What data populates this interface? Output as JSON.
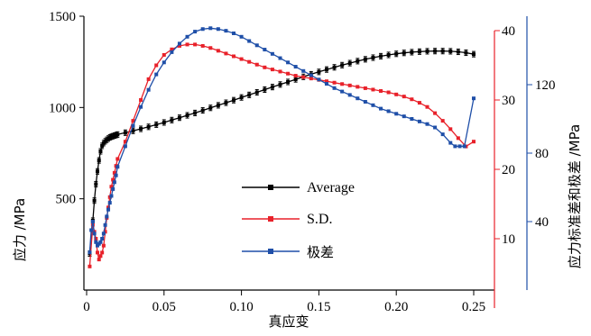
{
  "chart_data": {
    "type": "line",
    "xlabel": "真应变",
    "ylabel_left": "应力 /MPa",
    "ylabel_right_inner": "应力标准差和极差 /MPa",
    "xlim": [
      0,
      0.26
    ],
    "x_ticks": [
      "0",
      "0.05",
      "0.10",
      "0.15",
      "0.20",
      "0.25"
    ],
    "x_tick_values": [
      0,
      0.05,
      0.1,
      0.15,
      0.2,
      0.25
    ],
    "ylim_left": [
      0,
      1500
    ],
    "y_left_ticks": [
      "500",
      "1000",
      "1500"
    ],
    "y_left_tick_values": [
      500,
      1000,
      1500
    ],
    "ylim_right_inner": [
      0,
      40
    ],
    "y_right_inner_ticks": [
      "10",
      "20",
      "30",
      "40"
    ],
    "y_right_inner_tick_values": [
      10,
      20,
      30,
      40
    ],
    "ylim_right_outer": [
      0,
      160
    ],
    "y_right_outer_ticks": [
      "40",
      "80",
      "120"
    ],
    "y_right_outer_tick_values": [
      40,
      80,
      120
    ],
    "legend_position": "center",
    "colors": {
      "average": "#000000",
      "sd": "#e8212a",
      "range": "#1f4fa8",
      "right_inner_axis": "#e8212a",
      "right_outer_axis": "#1f4fa8"
    },
    "series": [
      {
        "name": "Average",
        "axis": "left",
        "error_bar": 15,
        "points": [
          [
            0.002,
            200
          ],
          [
            0.004,
            380
          ],
          [
            0.005,
            490
          ],
          [
            0.006,
            580
          ],
          [
            0.007,
            650
          ],
          [
            0.008,
            710
          ],
          [
            0.009,
            760
          ],
          [
            0.01,
            790
          ],
          [
            0.011,
            805
          ],
          [
            0.012,
            815
          ],
          [
            0.013,
            823
          ],
          [
            0.014,
            830
          ],
          [
            0.015,
            836
          ],
          [
            0.016,
            840
          ],
          [
            0.017,
            843
          ],
          [
            0.018,
            846
          ],
          [
            0.019,
            849
          ],
          [
            0.02,
            852
          ],
          [
            0.025,
            862
          ],
          [
            0.03,
            872
          ],
          [
            0.035,
            883
          ],
          [
            0.04,
            894
          ],
          [
            0.045,
            906
          ],
          [
            0.05,
            918
          ],
          [
            0.055,
            931
          ],
          [
            0.06,
            944
          ],
          [
            0.065,
            957
          ],
          [
            0.07,
            970
          ],
          [
            0.075,
            984
          ],
          [
            0.08,
            998
          ],
          [
            0.085,
            1012
          ],
          [
            0.09,
            1026
          ],
          [
            0.095,
            1040
          ],
          [
            0.1,
            1055
          ],
          [
            0.105,
            1069
          ],
          [
            0.11,
            1083
          ],
          [
            0.115,
            1098
          ],
          [
            0.12,
            1112
          ],
          [
            0.125,
            1126
          ],
          [
            0.13,
            1140
          ],
          [
            0.135,
            1154
          ],
          [
            0.14,
            1168
          ],
          [
            0.145,
            1182
          ],
          [
            0.15,
            1195
          ],
          [
            0.155,
            1208
          ],
          [
            0.16,
            1220
          ],
          [
            0.165,
            1232
          ],
          [
            0.17,
            1243
          ],
          [
            0.175,
            1254
          ],
          [
            0.18,
            1264
          ],
          [
            0.185,
            1273
          ],
          [
            0.19,
            1281
          ],
          [
            0.195,
            1288
          ],
          [
            0.2,
            1294
          ],
          [
            0.205,
            1299
          ],
          [
            0.21,
            1303
          ],
          [
            0.215,
            1306
          ],
          [
            0.22,
            1308
          ],
          [
            0.225,
            1309
          ],
          [
            0.23,
            1309
          ],
          [
            0.235,
            1308
          ],
          [
            0.24,
            1305
          ],
          [
            0.245,
            1300
          ],
          [
            0.25,
            1292
          ]
        ]
      },
      {
        "name": "S.D.",
        "axis": "right_inner",
        "points": [
          [
            0.002,
            6
          ],
          [
            0.004,
            12
          ],
          [
            0.005,
            11
          ],
          [
            0.006,
            10
          ],
          [
            0.007,
            8
          ],
          [
            0.008,
            7
          ],
          [
            0.009,
            7.5
          ],
          [
            0.01,
            8
          ],
          [
            0.011,
            9
          ],
          [
            0.012,
            11
          ],
          [
            0.013,
            13
          ],
          [
            0.014,
            14.5
          ],
          [
            0.015,
            16
          ],
          [
            0.016,
            17.5
          ],
          [
            0.017,
            18.5
          ],
          [
            0.018,
            19.5
          ],
          [
            0.019,
            20.5
          ],
          [
            0.02,
            21.5
          ],
          [
            0.025,
            24
          ],
          [
            0.03,
            27
          ],
          [
            0.035,
            30
          ],
          [
            0.04,
            33
          ],
          [
            0.045,
            35
          ],
          [
            0.05,
            36.5
          ],
          [
            0.055,
            37.3
          ],
          [
            0.06,
            37.8
          ],
          [
            0.065,
            38.0
          ],
          [
            0.07,
            38.0
          ],
          [
            0.075,
            37.8
          ],
          [
            0.08,
            37.5
          ],
          [
            0.085,
            37.1
          ],
          [
            0.09,
            36.7
          ],
          [
            0.095,
            36.3
          ],
          [
            0.1,
            35.9
          ],
          [
            0.105,
            35.5
          ],
          [
            0.11,
            35.1
          ],
          [
            0.115,
            34.7
          ],
          [
            0.12,
            34.4
          ],
          [
            0.125,
            34.1
          ],
          [
            0.13,
            33.8
          ],
          [
            0.135,
            33.5
          ],
          [
            0.14,
            33.3
          ],
          [
            0.145,
            33.1
          ],
          [
            0.15,
            32.9
          ],
          [
            0.155,
            32.7
          ],
          [
            0.16,
            32.5
          ],
          [
            0.165,
            32.3
          ],
          [
            0.17,
            32.1
          ],
          [
            0.175,
            31.9
          ],
          [
            0.18,
            31.7
          ],
          [
            0.185,
            31.5
          ],
          [
            0.19,
            31.3
          ],
          [
            0.195,
            31.1
          ],
          [
            0.2,
            30.8
          ],
          [
            0.205,
            30.5
          ],
          [
            0.21,
            30.1
          ],
          [
            0.215,
            29.6
          ],
          [
            0.22,
            29.0
          ],
          [
            0.225,
            28.1
          ],
          [
            0.23,
            27.0
          ],
          [
            0.235,
            25.8
          ],
          [
            0.24,
            24.5
          ],
          [
            0.245,
            23.3
          ],
          [
            0.25,
            24.0
          ]
        ]
      },
      {
        "name": "极差",
        "axis": "right_outer",
        "points": [
          [
            0.002,
            22
          ],
          [
            0.003,
            35
          ],
          [
            0.004,
            40
          ],
          [
            0.005,
            33
          ],
          [
            0.006,
            28
          ],
          [
            0.007,
            26
          ],
          [
            0.008,
            27
          ],
          [
            0.009,
            28
          ],
          [
            0.01,
            30
          ],
          [
            0.011,
            33
          ],
          [
            0.012,
            38
          ],
          [
            0.013,
            43
          ],
          [
            0.014,
            47
          ],
          [
            0.015,
            51
          ],
          [
            0.016,
            55
          ],
          [
            0.017,
            59
          ],
          [
            0.018,
            63
          ],
          [
            0.019,
            67
          ],
          [
            0.02,
            72
          ],
          [
            0.025,
            84
          ],
          [
            0.03,
            96
          ],
          [
            0.035,
            107
          ],
          [
            0.04,
            117
          ],
          [
            0.045,
            126
          ],
          [
            0.05,
            133
          ],
          [
            0.055,
            139
          ],
          [
            0.06,
            144
          ],
          [
            0.065,
            148
          ],
          [
            0.07,
            151
          ],
          [
            0.075,
            152.5
          ],
          [
            0.08,
            153
          ],
          [
            0.085,
            152.5
          ],
          [
            0.09,
            151.5
          ],
          [
            0.095,
            150
          ],
          [
            0.1,
            148
          ],
          [
            0.105,
            145.5
          ],
          [
            0.11,
            143
          ],
          [
            0.115,
            140.5
          ],
          [
            0.12,
            138
          ],
          [
            0.125,
            135.5
          ],
          [
            0.13,
            133
          ],
          [
            0.135,
            130.5
          ],
          [
            0.14,
            128
          ],
          [
            0.145,
            125.5
          ],
          [
            0.15,
            123
          ],
          [
            0.155,
            120.5
          ],
          [
            0.16,
            118
          ],
          [
            0.165,
            116
          ],
          [
            0.17,
            114
          ],
          [
            0.175,
            112
          ],
          [
            0.18,
            110
          ],
          [
            0.185,
            108
          ],
          [
            0.19,
            106
          ],
          [
            0.195,
            104.5
          ],
          [
            0.2,
            103
          ],
          [
            0.205,
            101.5
          ],
          [
            0.21,
            100
          ],
          [
            0.215,
            98.5
          ],
          [
            0.22,
            97
          ],
          [
            0.225,
            95
          ],
          [
            0.23,
            91
          ],
          [
            0.235,
            86
          ],
          [
            0.238,
            84
          ],
          [
            0.241,
            84
          ],
          [
            0.244,
            84
          ],
          [
            0.25,
            112
          ]
        ]
      }
    ]
  }
}
